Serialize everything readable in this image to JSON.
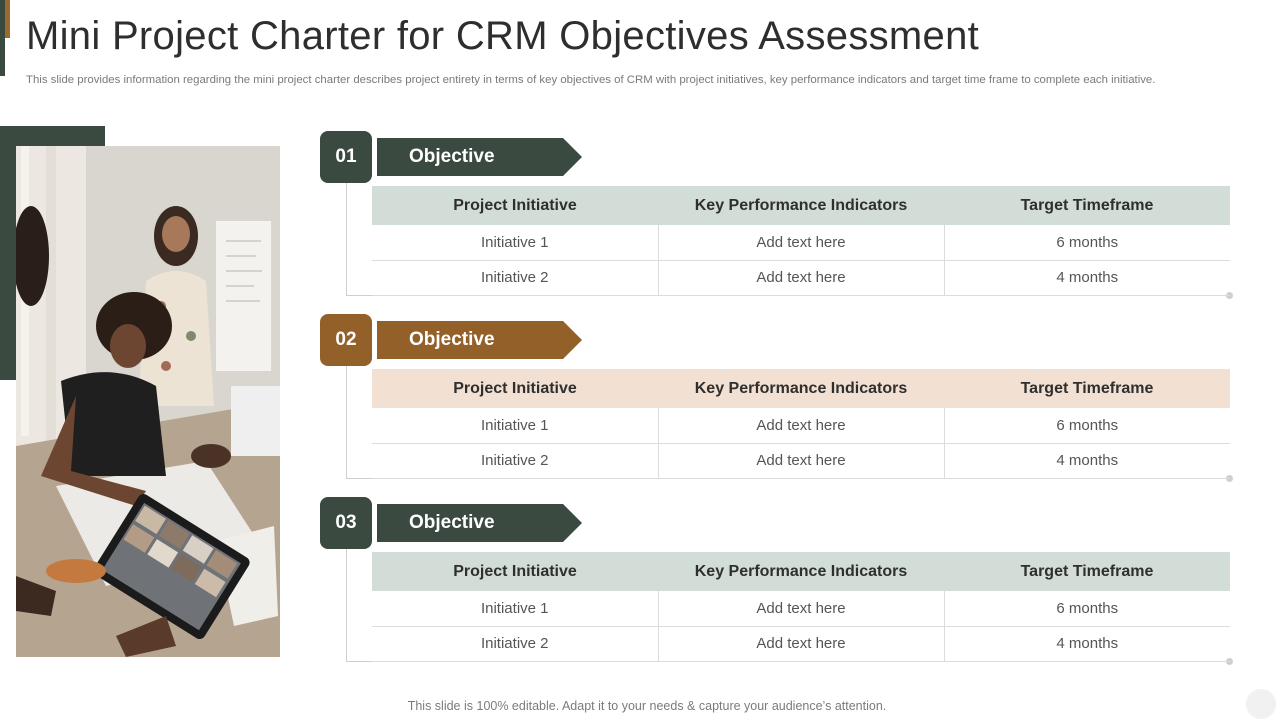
{
  "title": "Mini Project Charter for CRM Objectives Assessment",
  "subtitle": "This slide provides information regarding the mini project charter describes project entirety in terms of key objectives of CRM with project initiatives, key performance indicators and target time frame to complete each initiative.",
  "colors": {
    "dark_green": "#3b4a40",
    "brown": "#93602a",
    "light_green": "#d3ddd7",
    "light_peach": "#f2e0d2"
  },
  "sections": [
    {
      "number": "01",
      "label": "Objective",
      "headers": [
        "Project Initiative",
        "Key Performance Indicators",
        "Target Timeframe"
      ],
      "rows": [
        [
          "Initiative  1",
          "Add text here",
          "6 months"
        ],
        [
          "Initiative  2",
          "Add text here",
          "4 months"
        ]
      ]
    },
    {
      "number": "02",
      "label": "Objective",
      "headers": [
        "Project Initiative",
        "Key Performance Indicators",
        "Target Timeframe"
      ],
      "rows": [
        [
          "Initiative  1",
          "Add text here",
          "6 months"
        ],
        [
          "Initiative  2",
          "Add text here",
          "4 months"
        ]
      ]
    },
    {
      "number": "03",
      "label": "Objective",
      "headers": [
        "Project Initiative",
        "Key Performance Indicators",
        "Target Timeframe"
      ],
      "rows": [
        [
          "Initiative  1",
          "Add text here",
          "6 months"
        ],
        [
          "Initiative  2",
          "Add text here",
          "4 months"
        ]
      ]
    }
  ],
  "footer": "This slide is 100% editable. Adapt it to your needs & capture your audience’s attention."
}
